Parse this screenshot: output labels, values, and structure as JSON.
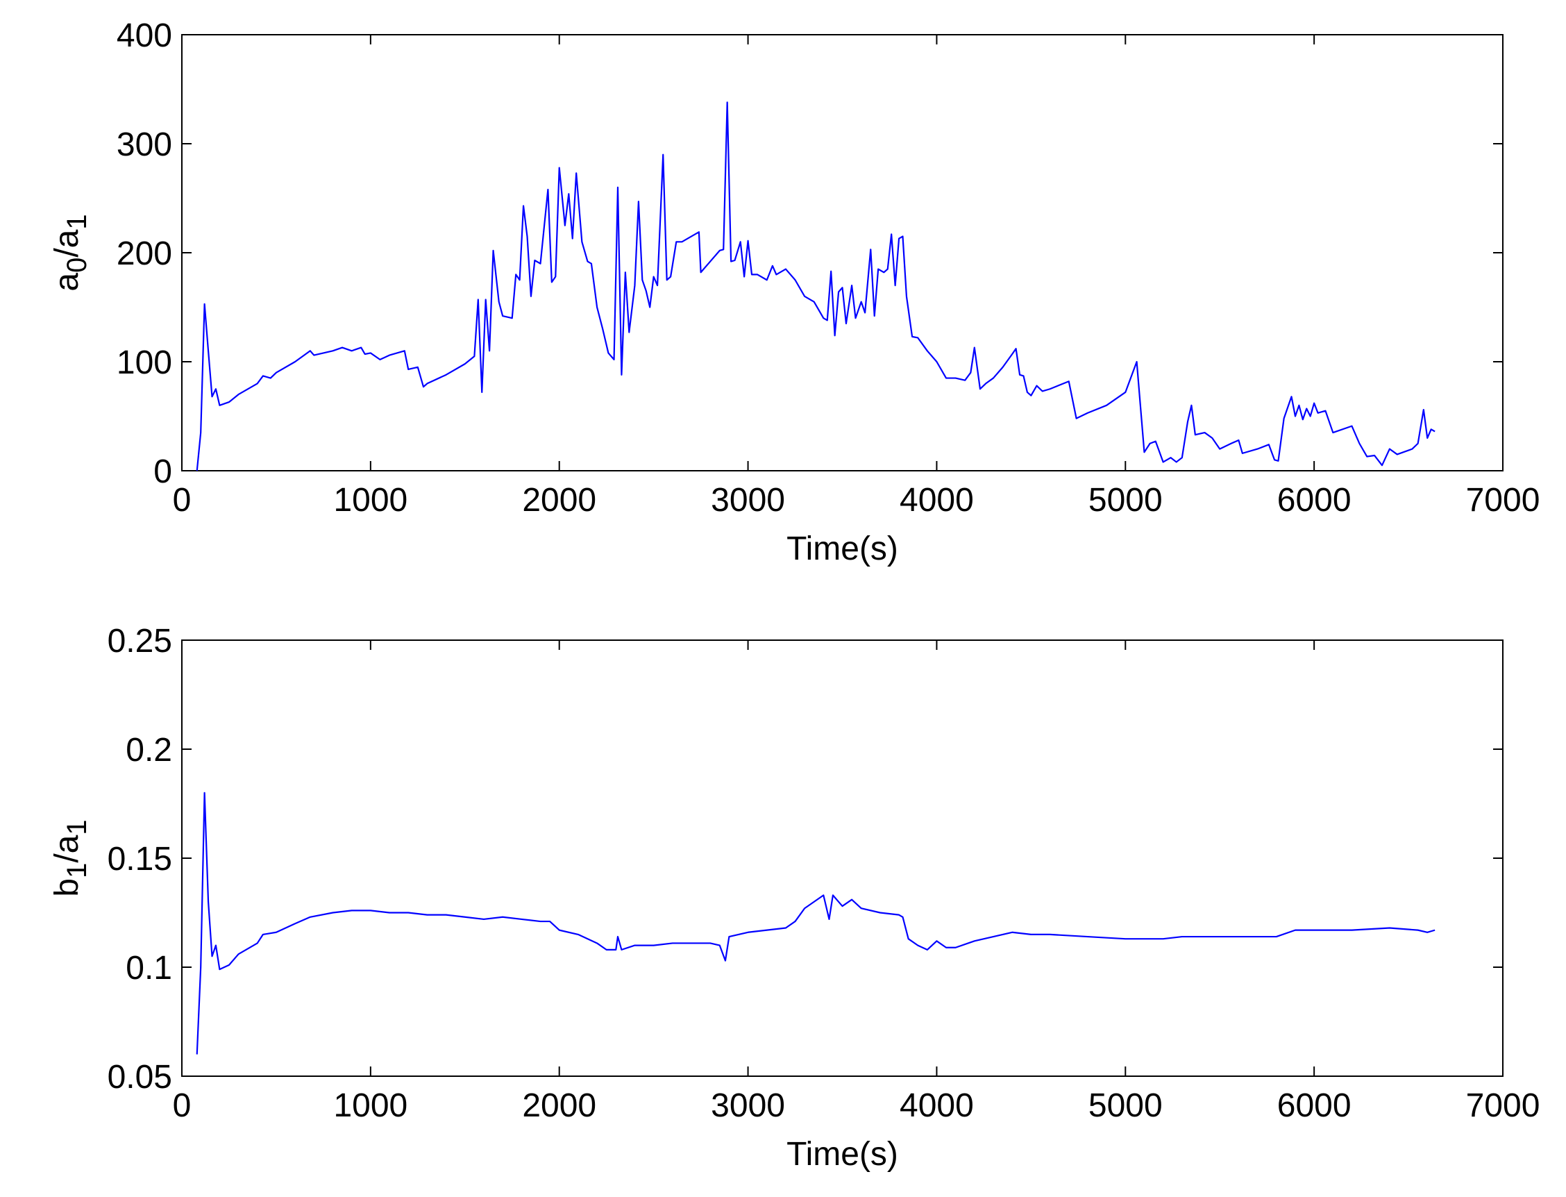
{
  "chart_data": [
    {
      "type": "line",
      "xlabel": "Time(s)",
      "ylabel": "a0/a1",
      "color": "#0000ff",
      "xlim": [
        0,
        7000
      ],
      "xticks": [
        0,
        1000,
        2000,
        3000,
        4000,
        5000,
        6000,
        7000
      ],
      "ylim": [
        0,
        400
      ],
      "yticks": [
        0,
        100,
        200,
        300,
        400
      ],
      "x": [
        80,
        100,
        120,
        140,
        160,
        180,
        200,
        250,
        300,
        400,
        430,
        470,
        500,
        600,
        680,
        700,
        800,
        850,
        900,
        950,
        970,
        1000,
        1050,
        1100,
        1180,
        1200,
        1250,
        1280,
        1300,
        1400,
        1500,
        1550,
        1570,
        1590,
        1610,
        1630,
        1650,
        1680,
        1700,
        1750,
        1770,
        1790,
        1810,
        1830,
        1850,
        1870,
        1900,
        1940,
        1960,
        1980,
        2000,
        2030,
        2050,
        2070,
        2090,
        2120,
        2150,
        2170,
        2200,
        2230,
        2260,
        2290,
        2310,
        2330,
        2350,
        2370,
        2400,
        2420,
        2440,
        2460,
        2480,
        2500,
        2520,
        2550,
        2570,
        2590,
        2620,
        2650,
        2700,
        2740,
        2750,
        2800,
        2850,
        2870,
        2890,
        2910,
        2930,
        2960,
        2980,
        3000,
        3020,
        3050,
        3100,
        3130,
        3150,
        3200,
        3250,
        3300,
        3350,
        3400,
        3420,
        3440,
        3460,
        3480,
        3500,
        3520,
        3550,
        3570,
        3600,
        3620,
        3650,
        3670,
        3690,
        3720,
        3740,
        3760,
        3780,
        3800,
        3820,
        3840,
        3870,
        3900,
        3950,
        4000,
        4050,
        4100,
        4150,
        4180,
        4200,
        4230,
        4260,
        4300,
        4350,
        4400,
        4420,
        4440,
        4460,
        4480,
        4500,
        4530,
        4560,
        4600,
        4700,
        4740,
        4800,
        4900,
        5000,
        5060,
        5100,
        5130,
        5160,
        5200,
        5240,
        5270,
        5300,
        5330,
        5350,
        5370,
        5420,
        5460,
        5500,
        5560,
        5600,
        5620,
        5700,
        5760,
        5790,
        5810,
        5840,
        5880,
        5900,
        5920,
        5940,
        5960,
        5980,
        6000,
        6020,
        6060,
        6100,
        6200,
        6240,
        6280,
        6320,
        6360,
        6400,
        6440,
        6520,
        6550,
        6580,
        6600,
        6620,
        6640
      ],
      "values": [
        0,
        35,
        153,
        110,
        68,
        75,
        60,
        63,
        70,
        80,
        87,
        85,
        90,
        100,
        110,
        106,
        110,
        113,
        110,
        113,
        107,
        108,
        102,
        106,
        110,
        93,
        95,
        77,
        80,
        88,
        98,
        105,
        157,
        72,
        157,
        110,
        202,
        155,
        142,
        140,
        180,
        175,
        243,
        215,
        160,
        193,
        190,
        258,
        173,
        178,
        278,
        225,
        254,
        213,
        273,
        210,
        192,
        190,
        150,
        130,
        108,
        102,
        260,
        88,
        182,
        127,
        170,
        247,
        175,
        165,
        150,
        178,
        170,
        290,
        175,
        178,
        210,
        210,
        215,
        219,
        182,
        192,
        202,
        203,
        338,
        192,
        193,
        210,
        178,
        211,
        180,
        180,
        175,
        188,
        180,
        185,
        175,
        160,
        155,
        140,
        138,
        183,
        124,
        164,
        168,
        135,
        170,
        140,
        155,
        145,
        203,
        142,
        185,
        182,
        185,
        217,
        170,
        213,
        215,
        160,
        123,
        122,
        110,
        100,
        85,
        85,
        83,
        90,
        113,
        75,
        80,
        85,
        95,
        107,
        112,
        88,
        87,
        72,
        69,
        78,
        73,
        75,
        82,
        48,
        53,
        60,
        72,
        100,
        17,
        25,
        27,
        8,
        12,
        8,
        12,
        45,
        60,
        33,
        35,
        30,
        20,
        25,
        28,
        16,
        20,
        24,
        10,
        9,
        48,
        68,
        50,
        60,
        47,
        57,
        50,
        62,
        53,
        55,
        35,
        41,
        25,
        13,
        14,
        5,
        20,
        15,
        20,
        25,
        56,
        30,
        38,
        36
      ]
    },
    {
      "type": "line",
      "xlabel": "Time(s)",
      "ylabel": "b1/a1",
      "color": "#0000ff",
      "xlim": [
        0,
        7000
      ],
      "xticks": [
        0,
        1000,
        2000,
        3000,
        4000,
        5000,
        6000,
        7000
      ],
      "ylim": [
        0.05,
        0.25
      ],
      "yticks": [
        0.05,
        0.1,
        0.15,
        0.2,
        0.25
      ],
      "x": [
        80,
        100,
        120,
        140,
        160,
        180,
        200,
        250,
        300,
        400,
        430,
        500,
        600,
        680,
        800,
        900,
        1000,
        1100,
        1200,
        1300,
        1400,
        1500,
        1600,
        1700,
        1800,
        1900,
        1950,
        2000,
        2100,
        2200,
        2250,
        2300,
        2310,
        2330,
        2400,
        2500,
        2600,
        2700,
        2800,
        2850,
        2880,
        2900,
        3000,
        3100,
        3200,
        3250,
        3300,
        3400,
        3430,
        3450,
        3500,
        3550,
        3600,
        3700,
        3800,
        3820,
        3850,
        3900,
        3950,
        4000,
        4050,
        4100,
        4200,
        4300,
        4400,
        4500,
        4600,
        4800,
        5000,
        5200,
        5300,
        5500,
        5700,
        5800,
        5900,
        6000,
        6200,
        6400,
        6550,
        6600,
        6640
      ],
      "values": [
        0.06,
        0.1,
        0.18,
        0.13,
        0.105,
        0.11,
        0.099,
        0.101,
        0.106,
        0.111,
        0.115,
        0.116,
        0.12,
        0.123,
        0.125,
        0.126,
        0.126,
        0.125,
        0.125,
        0.124,
        0.124,
        0.123,
        0.122,
        0.123,
        0.122,
        0.121,
        0.121,
        0.117,
        0.115,
        0.111,
        0.108,
        0.108,
        0.114,
        0.108,
        0.11,
        0.11,
        0.111,
        0.111,
        0.111,
        0.11,
        0.103,
        0.114,
        0.116,
        0.117,
        0.118,
        0.121,
        0.127,
        0.133,
        0.122,
        0.133,
        0.128,
        0.131,
        0.127,
        0.125,
        0.124,
        0.123,
        0.113,
        0.11,
        0.108,
        0.112,
        0.109,
        0.109,
        0.112,
        0.114,
        0.116,
        0.115,
        0.115,
        0.114,
        0.113,
        0.113,
        0.114,
        0.114,
        0.114,
        0.114,
        0.117,
        0.117,
        0.117,
        0.118,
        0.117,
        0.116,
        0.117
      ]
    }
  ]
}
